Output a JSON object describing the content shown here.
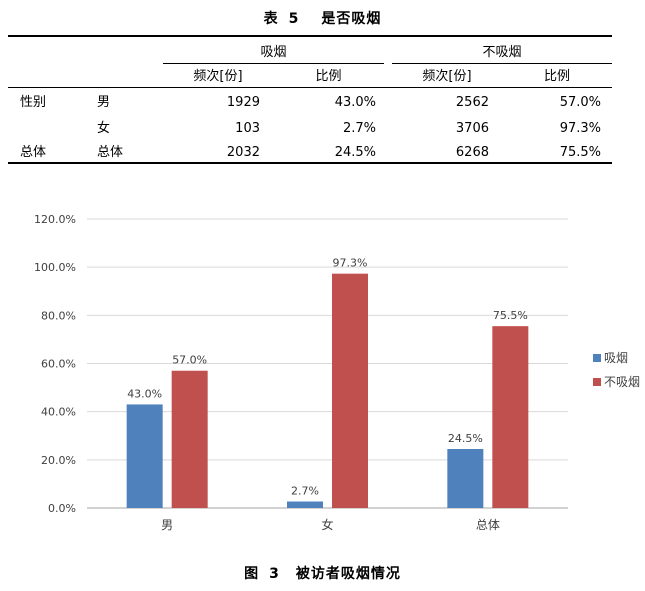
{
  "table": {
    "label": "表",
    "number": "5",
    "title": "是否吸烟",
    "groups": [
      "吸烟",
      "不吸烟"
    ],
    "subheaders": [
      "频次[份]",
      "比例",
      "频次[份]",
      "比例"
    ],
    "rows": [
      {
        "group": "性别",
        "label": "男",
        "smoke_n": "1929",
        "smoke_pct": "43.0%",
        "nonsmoke_n": "2562",
        "nonsmoke_pct": "57.0%"
      },
      {
        "group": "",
        "label": "女",
        "smoke_n": "103",
        "smoke_pct": "2.7%",
        "nonsmoke_n": "3706",
        "nonsmoke_pct": "97.3%"
      },
      {
        "group": "总体",
        "label": "总体",
        "smoke_n": "2032",
        "smoke_pct": "24.5%",
        "nonsmoke_n": "6268",
        "nonsmoke_pct": "75.5%"
      }
    ]
  },
  "chart_data": {
    "type": "bar",
    "categories": [
      "男",
      "女",
      "总体"
    ],
    "series": [
      {
        "name": "吸烟",
        "color": "#4f81bd",
        "values": [
          43.0,
          2.7,
          24.5
        ],
        "labels": [
          "43.0%",
          "2.7%",
          "24.5%"
        ]
      },
      {
        "name": "不吸烟",
        "color": "#c0504d",
        "values": [
          57.0,
          97.3,
          75.5
        ],
        "labels": [
          "57.0%",
          "97.3%",
          "75.5%"
        ]
      }
    ],
    "ylim": [
      0,
      120
    ],
    "yticks": [
      "0.0%",
      "20.0%",
      "40.0%",
      "60.0%",
      "80.0%",
      "100.0%",
      "120.0%"
    ],
    "grid": true,
    "legend_position": "right"
  },
  "figure": {
    "label": "图",
    "number": "3",
    "caption": "被访者吸烟情况"
  }
}
